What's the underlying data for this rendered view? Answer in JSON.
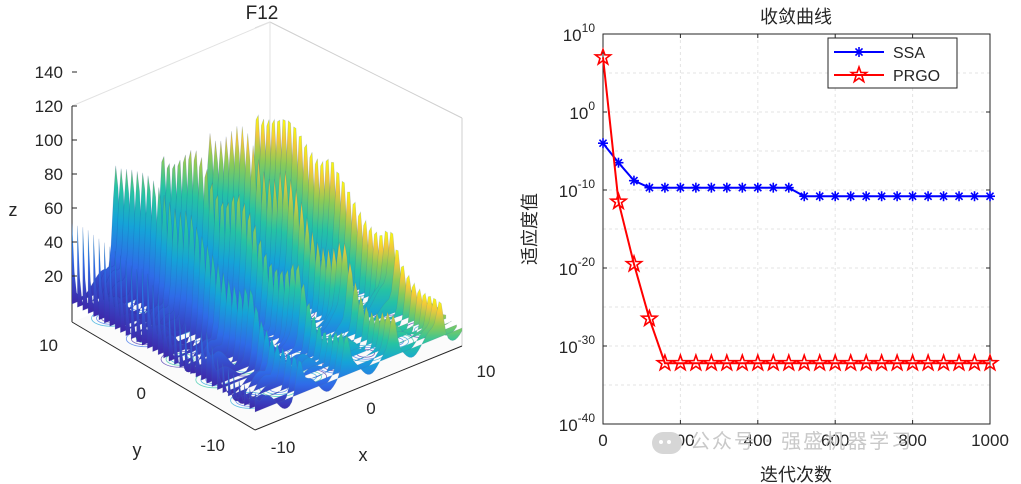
{
  "chart_data": [
    {
      "type": "surface3d",
      "title": "F12",
      "xlabel": "x",
      "ylabel": "y",
      "zlabel": "z",
      "x_ticks": [
        "-10",
        "0",
        "10"
      ],
      "y_ticks": [
        "-10",
        "0",
        "10"
      ],
      "z_ticks": [
        "20",
        "40",
        "60",
        "80",
        "100",
        "120",
        "140"
      ],
      "xlim": [
        -10,
        10
      ],
      "ylim": [
        -10,
        10
      ],
      "zlim": [
        0,
        150
      ],
      "colormap": [
        "#3e26a8",
        "#2f6be8",
        "#15a3d8",
        "#26c3a3",
        "#8ccb57",
        "#f2c93b",
        "#f9fb0e"
      ]
    },
    {
      "type": "line",
      "title": "收敛曲线",
      "xlabel": "迭代次数",
      "ylabel": "适应度值",
      "yscale": "log",
      "xlim": [
        0,
        1000
      ],
      "ylim_exponent": [
        -40,
        10
      ],
      "x_ticks": [
        "0",
        "200",
        "400",
        "600",
        "800",
        "1000"
      ],
      "y_tick_exponents": [
        "10",
        "0",
        "-10",
        "-20",
        "-30",
        "-40"
      ],
      "y_tick_base": "10",
      "legend_position": "top-right",
      "series": [
        {
          "name": "SSA",
          "color": "#0000ff",
          "marker": "asterisk",
          "x": [
            0,
            40,
            80,
            120,
            160,
            200,
            240,
            280,
            320,
            360,
            400,
            440,
            480,
            520,
            560,
            600,
            640,
            680,
            720,
            760,
            800,
            840,
            880,
            920,
            960,
            1000
          ],
          "log10_y": [
            -4,
            -6.5,
            -8.8,
            -9.7,
            -9.7,
            -9.7,
            -9.7,
            -9.7,
            -9.7,
            -9.7,
            -9.7,
            -9.7,
            -9.7,
            -10.8,
            -10.8,
            -10.8,
            -10.8,
            -10.8,
            -10.8,
            -10.8,
            -10.8,
            -10.8,
            -10.8,
            -10.8,
            -10.8,
            -10.8
          ]
        },
        {
          "name": "PRGO",
          "color": "#ff0000",
          "marker": "pentagram",
          "x": [
            0,
            40,
            80,
            120,
            160,
            200,
            240,
            280,
            320,
            360,
            400,
            440,
            480,
            520,
            560,
            600,
            640,
            680,
            720,
            760,
            800,
            840,
            880,
            920,
            960,
            1000
          ],
          "log10_y": [
            7,
            -11.5,
            -19.5,
            -26.5,
            -32.2,
            -32.2,
            -32.2,
            -32.2,
            -32.2,
            -32.2,
            -32.2,
            -32.2,
            -32.2,
            -32.2,
            -32.2,
            -32.2,
            -32.2,
            -32.2,
            -32.2,
            -32.2,
            -32.2,
            -32.2,
            -32.2,
            -32.2,
            -32.2,
            -32.2
          ]
        }
      ]
    }
  ],
  "watermark": {
    "text": "公众号 · 强盛机器学习"
  }
}
